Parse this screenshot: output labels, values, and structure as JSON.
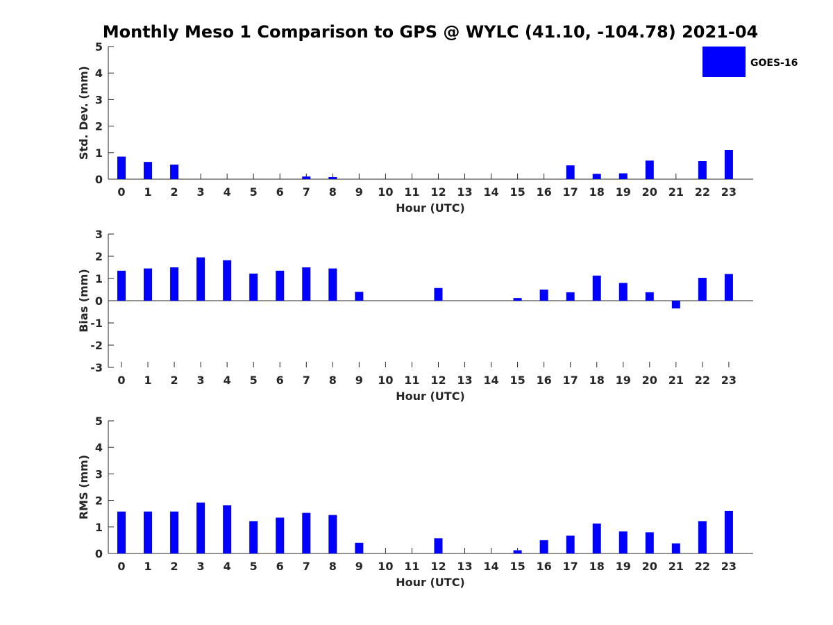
{
  "chart_data": {
    "type": "bar",
    "title": "Monthly Meso 1 Comparison to GPS @ WYLC (41.10, -104.78) 2021-04",
    "legend": {
      "label": "GOES-16",
      "color": "#0000ff",
      "position": "top-right"
    },
    "bar_color": "#0000ff",
    "categories": [
      "0",
      "1",
      "2",
      "3",
      "4",
      "5",
      "6",
      "7",
      "8",
      "9",
      "10",
      "11",
      "12",
      "13",
      "14",
      "15",
      "16",
      "17",
      "18",
      "19",
      "20",
      "21",
      "22",
      "23"
    ],
    "panels": [
      {
        "name": "std-dev",
        "ylabel": "Std. Dev. (mm)",
        "xlabel": "Hour (UTC)",
        "ylim": [
          0,
          5
        ],
        "yticks": [
          "0",
          "1",
          "2",
          "3",
          "4",
          "5"
        ],
        "values": [
          0.85,
          0.65,
          0.55,
          null,
          null,
          null,
          null,
          0.1,
          0.08,
          null,
          null,
          null,
          null,
          null,
          null,
          null,
          null,
          0.52,
          0.2,
          0.22,
          0.7,
          null,
          0.68,
          1.1
        ]
      },
      {
        "name": "bias",
        "ylabel": "Bias (mm)",
        "xlabel": "Hour (UTC)",
        "ylim": [
          -3,
          3
        ],
        "yticks": [
          "-3",
          "-2",
          "-1",
          "0",
          "1",
          "2",
          "3"
        ],
        "values": [
          1.35,
          1.45,
          1.5,
          1.95,
          1.82,
          1.22,
          1.35,
          1.5,
          1.45,
          0.4,
          null,
          null,
          0.57,
          null,
          null,
          0.12,
          0.5,
          0.38,
          1.13,
          0.8,
          0.38,
          -0.35,
          1.03,
          1.2
        ]
      },
      {
        "name": "rms",
        "ylabel": "RMS (mm)",
        "xlabel": "Hour (UTC)",
        "ylim": [
          0,
          5
        ],
        "yticks": [
          "0",
          "1",
          "2",
          "3",
          "4",
          "5"
        ],
        "values": [
          1.58,
          1.58,
          1.58,
          1.92,
          1.82,
          1.22,
          1.35,
          1.53,
          1.45,
          0.4,
          null,
          null,
          0.57,
          null,
          null,
          0.12,
          0.5,
          0.67,
          1.13,
          0.83,
          0.8,
          0.38,
          1.22,
          1.6
        ]
      }
    ]
  }
}
